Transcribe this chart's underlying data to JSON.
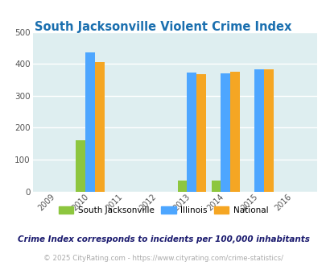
{
  "title": "South Jacksonville Violent Crime Index",
  "years": [
    2009,
    2010,
    2011,
    2012,
    2013,
    2014,
    2015,
    2016
  ],
  "data": {
    "south_jacksonville": {
      "2010": 160,
      "2013": 35,
      "2014": 35
    },
    "illinois": {
      "2010": 435,
      "2013": 373,
      "2014": 369,
      "2015": 383
    },
    "national": {
      "2010": 405,
      "2013": 367,
      "2014": 376,
      "2015": 383
    }
  },
  "colors": {
    "south_jacksonville": "#8dc63f",
    "illinois": "#4da6ff",
    "national": "#f5a623"
  },
  "ylim": [
    0,
    500
  ],
  "yticks": [
    0,
    100,
    200,
    300,
    400,
    500
  ],
  "background_color": "#deeef0",
  "legend_labels": [
    "South Jacksonville",
    "Illinois",
    "National"
  ],
  "footnote1": "Crime Index corresponds to incidents per 100,000 inhabitants",
  "footnote2": "© 2025 CityRating.com - https://www.cityrating.com/crime-statistics/",
  "title_color": "#1a6faf",
  "footnote1_color": "#1a1a6e",
  "footnote2_color": "#aaaaaa",
  "bar_width": 0.28
}
